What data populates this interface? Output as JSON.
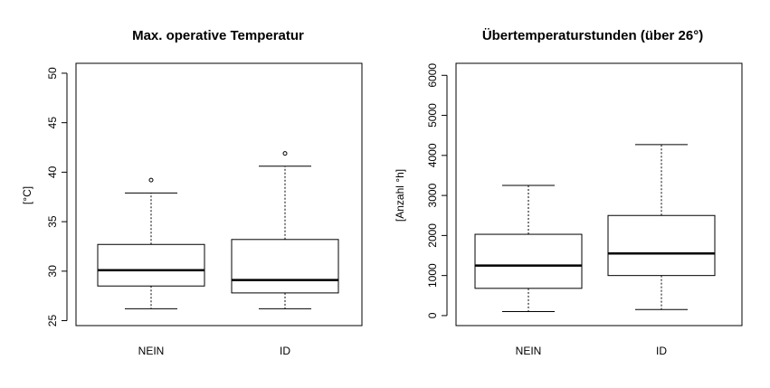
{
  "chart_data": [
    {
      "type": "boxplot",
      "title": "Max. operative Temperatur",
      "xlabel": "",
      "ylabel": "[°C]",
      "ylim": [
        24.5,
        51.0
      ],
      "yticks": [
        25,
        30,
        35,
        40,
        45,
        50
      ],
      "categories": [
        "NEIN",
        "ID"
      ],
      "boxes": [
        {
          "category": "NEIN",
          "min": 26.2,
          "q1": 28.5,
          "median": 30.1,
          "q3": 32.7,
          "max": 37.9,
          "outliers": [
            39.2
          ]
        },
        {
          "category": "ID",
          "min": 26.2,
          "q1": 27.8,
          "median": 29.1,
          "q3": 33.2,
          "max": 40.6,
          "outliers": [
            41.9
          ]
        }
      ],
      "grid": false
    },
    {
      "type": "boxplot",
      "title": "Übertemperaturstunden (über 26°)",
      "xlabel": "",
      "ylabel": "[Anzahl °h]",
      "ylim": [
        -250,
        6300
      ],
      "yticks": [
        0,
        1000,
        2000,
        3000,
        4000,
        5000,
        6000
      ],
      "categories": [
        "NEIN",
        "ID"
      ],
      "boxes": [
        {
          "category": "NEIN",
          "min": 100,
          "q1": 680,
          "median": 1250,
          "q3": 2030,
          "max": 3250,
          "outliers": []
        },
        {
          "category": "ID",
          "min": 150,
          "q1": 1000,
          "median": 1550,
          "q3": 2500,
          "max": 4270,
          "outliers": []
        }
      ],
      "grid": false
    }
  ]
}
